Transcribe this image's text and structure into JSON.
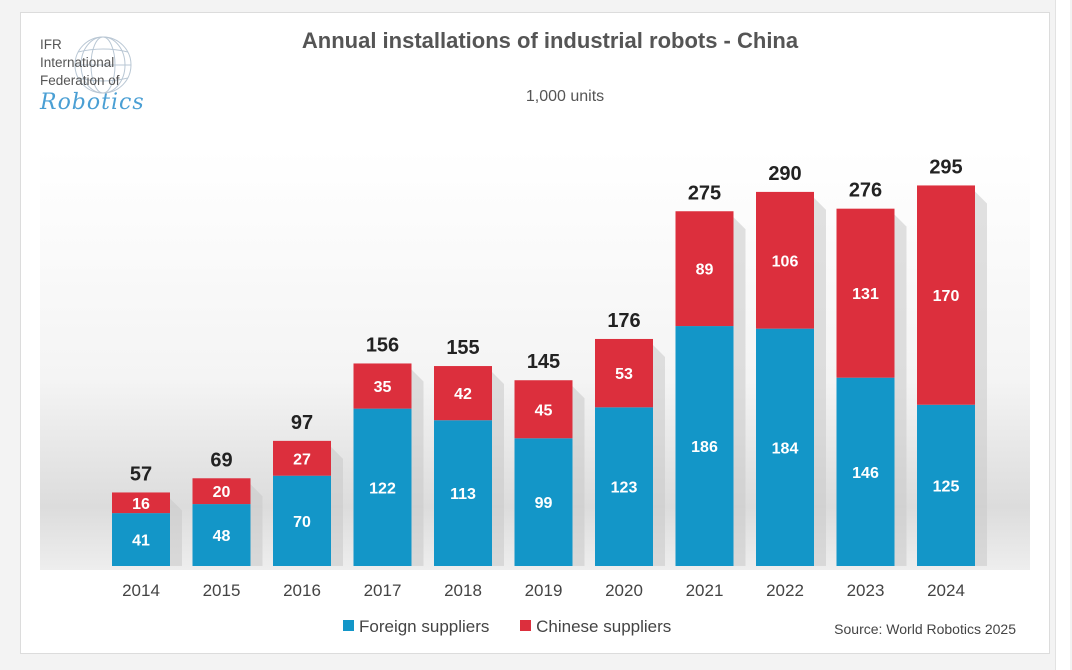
{
  "logo": {
    "lines": [
      "IFR",
      "International",
      "Federation of"
    ],
    "script": "Robotics"
  },
  "source_text": "Source: World Robotics 2025",
  "colors": {
    "foreign": "#1396c8",
    "chinese": "#dc2f3d",
    "text": "#444444"
  },
  "chart_data": {
    "type": "bar",
    "stacked": true,
    "title": "Annual installations of industrial robots - China",
    "subtitle": "1,000 units",
    "categories": [
      "2014",
      "2015",
      "2016",
      "2017",
      "2018",
      "2019",
      "2020",
      "2021",
      "2022",
      "2023",
      "2024"
    ],
    "series": [
      {
        "name": "Foreign suppliers",
        "values": [
          41,
          48,
          70,
          122,
          113,
          99,
          123,
          186,
          184,
          146,
          125
        ]
      },
      {
        "name": "Chinese suppliers",
        "values": [
          16,
          20,
          27,
          35,
          42,
          45,
          53,
          89,
          106,
          131,
          170
        ]
      }
    ],
    "totals": [
      57,
      69,
      97,
      156,
      155,
      145,
      176,
      275,
      290,
      276,
      295
    ],
    "ylim": [
      0,
      300
    ],
    "xlabel": "",
    "ylabel": "",
    "grid": false,
    "legend_position": "bottom"
  }
}
